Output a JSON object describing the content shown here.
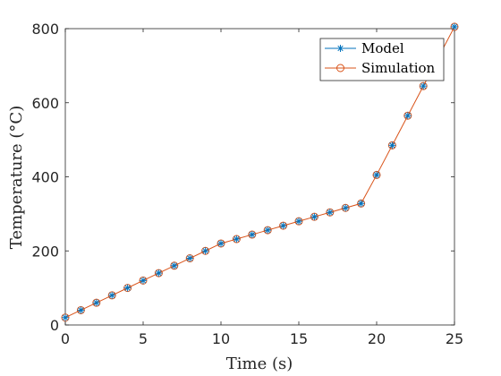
{
  "chart_data": {
    "type": "line",
    "xlabel": "Time (s)",
    "ylabel": "Temperature (°C)",
    "xlim": [
      0,
      25
    ],
    "ylim": [
      0,
      800
    ],
    "xticks": [
      0,
      5,
      10,
      15,
      20,
      25
    ],
    "yticks": [
      0,
      200,
      400,
      600,
      800
    ],
    "grid": false,
    "legend_position": "top-right",
    "x": [
      0,
      1,
      2,
      3,
      4,
      5,
      6,
      7,
      8,
      9,
      10,
      11,
      12,
      13,
      14,
      15,
      16,
      17,
      18,
      19,
      20,
      21,
      22,
      23,
      24,
      25
    ],
    "series": [
      {
        "name": "Model",
        "marker": "asterisk",
        "color": "#0072BD",
        "line": false,
        "values": [
          20,
          40,
          60,
          80,
          100,
          120,
          140,
          160,
          180,
          200,
          220,
          232,
          244,
          256,
          268,
          280,
          292,
          304,
          316,
          328,
          405,
          485,
          565,
          645,
          725,
          805
        ]
      },
      {
        "name": "Simulation",
        "marker": "circle",
        "color": "#D95319",
        "line": true,
        "values": [
          20,
          40,
          60,
          80,
          100,
          120,
          140,
          160,
          180,
          200,
          220,
          232,
          244,
          256,
          268,
          280,
          292,
          304,
          316,
          328,
          405,
          485,
          565,
          645,
          725,
          805
        ]
      }
    ]
  }
}
